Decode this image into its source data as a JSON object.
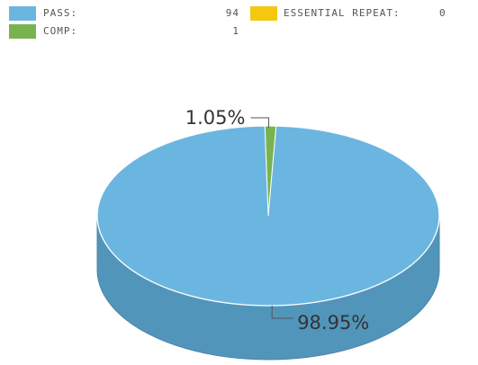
{
  "legend": {
    "pass_label": "PASS:",
    "pass_value": "94",
    "essential_label": "ESSENTIAL REPEAT:",
    "essential_value": "0",
    "comp_label": "COMP:",
    "comp_value": "1"
  },
  "colors": {
    "pass": "#6ab6e0",
    "pass_side": "#5295bb",
    "essential": "#f4c80e",
    "comp": "#78b350"
  },
  "chart_data": {
    "type": "pie",
    "style": "3d",
    "categories": [
      "PASS",
      "ESSENTIAL REPEAT",
      "COMP"
    ],
    "values": [
      94,
      0,
      1
    ],
    "data_labels": [
      "98.95%",
      "",
      "1.05%"
    ],
    "legend_position": "top"
  }
}
